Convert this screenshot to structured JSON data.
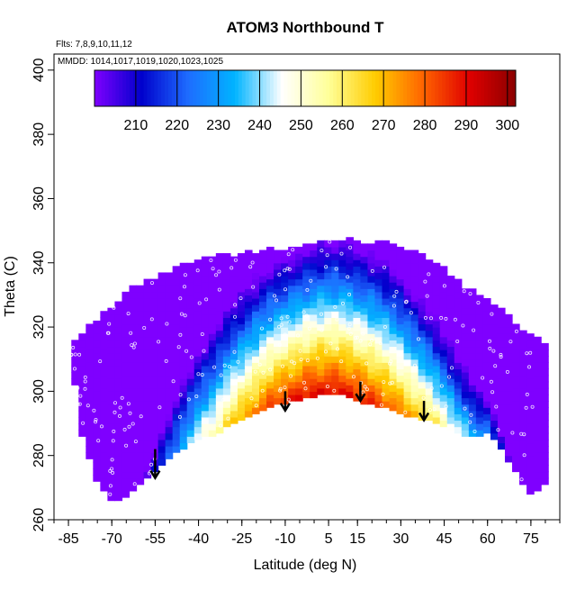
{
  "chart_data": {
    "type": "heatmap",
    "title": "ATOM3 Northbound T",
    "subtitle_flights": "Flts: 7,8,9,10,11,12",
    "subtitle_dates": "MMDD: 1014,1017,1019,1020,1023,1025",
    "xlabel": "Latitude (deg N)",
    "ylabel": "Theta (C)",
    "xlim": [
      -90,
      85
    ],
    "ylim": [
      260,
      405
    ],
    "x_ticks": [
      -85,
      -70,
      -55,
      -40,
      -25,
      -10,
      5,
      15,
      30,
      45,
      60,
      75
    ],
    "x_tick_labels": [
      "-85",
      "-70",
      "-55",
      "-40",
      "-25",
      "-10",
      "5",
      "15",
      "30",
      "45",
      "60",
      "75"
    ],
    "y_ticks": [
      260,
      280,
      300,
      320,
      340,
      360,
      380,
      400
    ],
    "y_tick_labels": [
      "260",
      "280",
      "300",
      "320",
      "340",
      "360",
      "380",
      "400"
    ],
    "colorbar": {
      "min": 200,
      "max": 302,
      "ticks": [
        210,
        220,
        230,
        240,
        250,
        260,
        270,
        280,
        290,
        300
      ],
      "tick_labels": [
        "210",
        "220",
        "230",
        "240",
        "250",
        "260",
        "270",
        "280",
        "290",
        "300"
      ],
      "colors": [
        "#7f00ff",
        "#0000cc",
        "#1e6cff",
        "#00b4ff",
        "#ffffff",
        "#ffff99",
        "#ffcc00",
        "#ff6600",
        "#e00000",
        "#8b0000"
      ]
    },
    "envelope": {
      "lat": [
        -84,
        -80,
        -75,
        -70,
        -65,
        -60,
        -55,
        -50,
        -45,
        -40,
        -35,
        -30,
        -25,
        -20,
        -15,
        -10,
        -5,
        0,
        5,
        10,
        15,
        20,
        25,
        30,
        35,
        40,
        45,
        50,
        55,
        60,
        65,
        70,
        75,
        80
      ],
      "theta_min": [
        310,
        285,
        272,
        266,
        268,
        272,
        276,
        280,
        283,
        286,
        286,
        290,
        292,
        294,
        296,
        297,
        298,
        299,
        299,
        299,
        297,
        296,
        295,
        293,
        292,
        291,
        289,
        287,
        286,
        288,
        282,
        275,
        268,
        272
      ],
      "theta_max": [
        313,
        318,
        322,
        326,
        330,
        333,
        335,
        337,
        339,
        340,
        341,
        342,
        342,
        343,
        344,
        344,
        345,
        346,
        347,
        347,
        346,
        346,
        345,
        344,
        342,
        340,
        337,
        333,
        330,
        327,
        324,
        320,
        317,
        313
      ]
    },
    "arrows": [
      {
        "lat": -55,
        "theta_from": 282,
        "theta_to": 273
      },
      {
        "lat": -10,
        "theta_from": 300,
        "theta_to": 294
      },
      {
        "lat": 16,
        "theta_from": 303,
        "theta_to": 297
      },
      {
        "lat": 38,
        "theta_from": 297,
        "theta_to": 291
      }
    ],
    "grid": false,
    "legend": "colorbar-top"
  }
}
